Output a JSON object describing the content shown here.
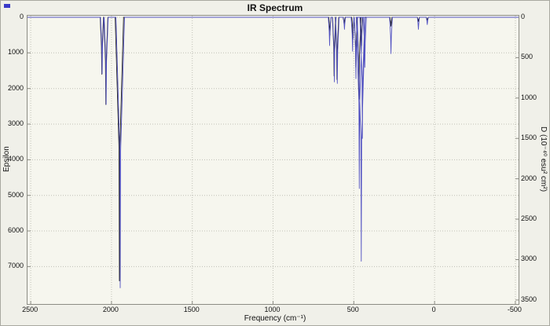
{
  "title": "IR Spectrum",
  "colors": {
    "figure_background": "#f0f0e9",
    "plot_background": "#f6f6ee",
    "grid": "#c0c0b6",
    "axis_border": "#8c8c84",
    "text": "#111111",
    "corner_marker": "#3a3ac8"
  },
  "chart_data": {
    "type": "line",
    "subtype": "ir-stick-spectrum",
    "title": "IR Spectrum",
    "xlabel": "Frequency (cm⁻¹)",
    "ylabel": "Epsilon",
    "y2label": "D (10⁻⁴⁰ esu² cm²)",
    "x_ticks": [
      2500,
      2000,
      1500,
      1000,
      500,
      0,
      -500
    ],
    "x_range": [
      2520,
      -520
    ],
    "x_reversed": true,
    "y_left_ticks": [
      0,
      1000,
      2000,
      3000,
      4000,
      5000,
      6000,
      7000
    ],
    "y_left_range": [
      0,
      8050
    ],
    "y_right_ticks": [
      0,
      500,
      1000,
      1500,
      2000,
      2500,
      3000,
      3500
    ],
    "y_right_range": [
      0,
      3550
    ],
    "y_axes_inverted_zero_at_top": true,
    "grid": "dotted",
    "legend": "none",
    "peaks_format": "[frequency_cm-1, intensity]",
    "series": [
      {
        "name": "Epsilon",
        "axis": "left",
        "color": "#1a1a1a",
        "peaks": [
          [
            2060,
            1600
          ],
          [
            2035,
            2450
          ],
          [
            1951,
            7400
          ],
          [
            648,
            500
          ],
          [
            622,
            1650
          ],
          [
            604,
            1750
          ],
          [
            560,
            200
          ],
          [
            505,
            600
          ],
          [
            488,
            1400
          ],
          [
            468,
            2300
          ],
          [
            452,
            800
          ],
          [
            270,
            250
          ],
          [
            100,
            120
          ],
          [
            45,
            80
          ]
        ]
      },
      {
        "name": "D",
        "axis": "right",
        "color": "#5252c2",
        "peaks": [
          [
            2058,
            700
          ],
          [
            2033,
            1080
          ],
          [
            1946,
            3350
          ],
          [
            650,
            350
          ],
          [
            620,
            800
          ],
          [
            602,
            820
          ],
          [
            558,
            150
          ],
          [
            508,
            420
          ],
          [
            487,
            760
          ],
          [
            466,
            2120
          ],
          [
            454,
            3020
          ],
          [
            447,
            1500
          ],
          [
            432,
            620
          ],
          [
            270,
            450
          ],
          [
            100,
            150
          ],
          [
            45,
            90
          ]
        ]
      }
    ]
  }
}
